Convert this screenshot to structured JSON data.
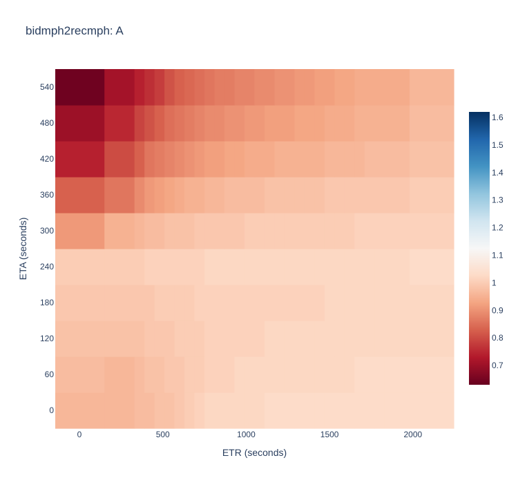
{
  "chart_data": {
    "type": "heatmap",
    "title": "bidmph2recmph: A",
    "xlabel": "ETR (seconds)",
    "ylabel": "ETA (seconds)",
    "xlim": [
      -145,
      2245
    ],
    "ylim": [
      -30,
      570
    ],
    "x_ticks": [
      0,
      500,
      1000,
      1500,
      2000
    ],
    "y_ticks": [
      0,
      60,
      120,
      180,
      240,
      300,
      360,
      420,
      480,
      540
    ],
    "x": [
      0,
      300,
      360,
      420,
      480,
      540,
      600,
      660,
      720,
      780,
      840,
      900,
      960,
      1020,
      1080,
      1140,
      1200,
      1260,
      1320,
      1380,
      1440,
      1500,
      1560,
      1620,
      1680,
      1740,
      1800,
      1860,
      2100
    ],
    "y": [
      0,
      60,
      120,
      180,
      240,
      300,
      360,
      420,
      480,
      540
    ],
    "z": [
      [
        0.96,
        0.96,
        0.97,
        0.97,
        0.98,
        0.98,
        0.99,
        1.0,
        1.01,
        1.02,
        1.02,
        1.02,
        1.02,
        1.02,
        1.02,
        1.03,
        1.03,
        1.03,
        1.03,
        1.03,
        1.03,
        1.03,
        1.03,
        1.03,
        1.03,
        1.03,
        1.03,
        1.03,
        1.03
      ],
      [
        0.97,
        0.96,
        0.97,
        0.98,
        0.98,
        0.99,
        0.99,
        1.0,
        1.0,
        1.01,
        1.01,
        1.01,
        1.02,
        1.02,
        1.02,
        1.02,
        1.02,
        1.02,
        1.02,
        1.02,
        1.02,
        1.02,
        1.02,
        1.02,
        1.03,
        1.03,
        1.03,
        1.03,
        1.03
      ],
      [
        0.98,
        0.98,
        0.98,
        0.99,
        0.99,
        0.99,
        1.0,
        1.0,
        1.0,
        1.01,
        1.01,
        1.01,
        1.01,
        1.01,
        1.01,
        1.02,
        1.02,
        1.02,
        1.02,
        1.02,
        1.02,
        1.02,
        1.02,
        1.02,
        1.02,
        1.02,
        1.02,
        1.02,
        1.02
      ],
      [
        0.99,
        0.99,
        0.99,
        0.99,
        1.0,
        1.0,
        1.0,
        1.0,
        1.01,
        1.01,
        1.01,
        1.01,
        1.01,
        1.01,
        1.01,
        1.01,
        1.01,
        1.01,
        1.01,
        1.01,
        1.01,
        1.02,
        1.02,
        1.02,
        1.02,
        1.02,
        1.02,
        1.02,
        1.02
      ],
      [
        1.0,
        1.0,
        1.0,
        1.01,
        1.01,
        1.01,
        1.01,
        1.01,
        1.01,
        1.02,
        1.02,
        1.02,
        1.02,
        1.02,
        1.02,
        1.02,
        1.02,
        1.02,
        1.02,
        1.02,
        1.02,
        1.02,
        1.02,
        1.02,
        1.02,
        1.02,
        1.02,
        1.02,
        1.03
      ],
      [
        0.91,
        0.95,
        0.96,
        0.97,
        0.97,
        0.98,
        0.98,
        0.98,
        0.99,
        0.99,
        0.99,
        0.99,
        0.99,
        1.0,
        1.0,
        1.0,
        1.0,
        1.0,
        1.0,
        1.0,
        1.0,
        1.0,
        1.0,
        1.0,
        1.01,
        1.01,
        1.01,
        1.01,
        1.01
      ],
      [
        0.83,
        0.86,
        0.89,
        0.91,
        0.92,
        0.93,
        0.94,
        0.95,
        0.95,
        0.96,
        0.96,
        0.97,
        0.97,
        0.97,
        0.97,
        0.98,
        0.98,
        0.98,
        0.98,
        0.98,
        0.98,
        0.99,
        0.99,
        0.99,
        0.99,
        0.99,
        0.99,
        0.99,
        1.0
      ],
      [
        0.74,
        0.8,
        0.83,
        0.86,
        0.87,
        0.88,
        0.89,
        0.9,
        0.91,
        0.92,
        0.92,
        0.93,
        0.93,
        0.94,
        0.94,
        0.94,
        0.95,
        0.95,
        0.95,
        0.95,
        0.95,
        0.96,
        0.96,
        0.96,
        0.96,
        0.97,
        0.97,
        0.97,
        0.98
      ],
      [
        0.7,
        0.75,
        0.79,
        0.81,
        0.83,
        0.85,
        0.86,
        0.87,
        0.88,
        0.89,
        0.89,
        0.9,
        0.9,
        0.91,
        0.91,
        0.92,
        0.92,
        0.92,
        0.93,
        0.93,
        0.93,
        0.94,
        0.94,
        0.94,
        0.95,
        0.95,
        0.95,
        0.95,
        0.97
      ],
      [
        0.64,
        0.71,
        0.74,
        0.76,
        0.78,
        0.81,
        0.83,
        0.84,
        0.85,
        0.86,
        0.87,
        0.87,
        0.88,
        0.88,
        0.89,
        0.89,
        0.9,
        0.9,
        0.91,
        0.91,
        0.92,
        0.92,
        0.93,
        0.93,
        0.94,
        0.94,
        0.94,
        0.94,
        0.96
      ]
    ],
    "colorscale": "RdBu",
    "zmin": 0.63,
    "zmax": 1.62,
    "colorbar_ticks": [
      0.7,
      0.8,
      0.9,
      1,
      1.1,
      1.2,
      1.3,
      1.4,
      1.5,
      1.6
    ],
    "legend": "none",
    "grid": false
  }
}
